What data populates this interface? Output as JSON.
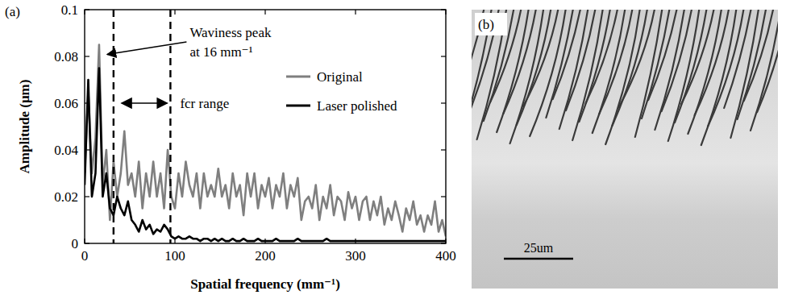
{
  "chart_data": {
    "type": "line",
    "panel": "(a)",
    "x_label": "Spatial frequency (mm⁻¹)",
    "y_label": "Amplitude (μm)",
    "xlim": [
      0,
      400
    ],
    "ylim": [
      0,
      0.1
    ],
    "xticks": [
      0,
      100,
      200,
      300,
      400
    ],
    "yticks": [
      0,
      0.02,
      0.04,
      0.06,
      0.08,
      0.1
    ],
    "grid": false,
    "legend": "upper right",
    "x": [
      0,
      4,
      8,
      12,
      16,
      20,
      24,
      28,
      32,
      36,
      40,
      44,
      48,
      52,
      56,
      60,
      64,
      68,
      72,
      76,
      80,
      84,
      88,
      92,
      96,
      100,
      104,
      108,
      112,
      116,
      120,
      124,
      128,
      132,
      136,
      140,
      144,
      148,
      152,
      156,
      160,
      164,
      168,
      172,
      176,
      180,
      184,
      188,
      192,
      196,
      200,
      204,
      208,
      212,
      216,
      220,
      224,
      228,
      232,
      236,
      240,
      244,
      248,
      252,
      256,
      260,
      264,
      268,
      272,
      276,
      280,
      284,
      288,
      292,
      296,
      300,
      304,
      308,
      312,
      316,
      320,
      324,
      328,
      332,
      336,
      340,
      344,
      348,
      352,
      356,
      360,
      364,
      368,
      372,
      376,
      380,
      384,
      388,
      392,
      396,
      400
    ],
    "series": [
      {
        "name": "Original",
        "color": "#7f7f7f",
        "values": [
          0.03,
          0.065,
          0.03,
          0.045,
          0.085,
          0.025,
          0.04,
          0.01,
          0.035,
          0.02,
          0.03,
          0.048,
          0.025,
          0.03,
          0.02,
          0.035,
          0.015,
          0.03,
          0.02,
          0.035,
          0.02,
          0.03,
          0.015,
          0.04,
          0.02,
          0.015,
          0.03,
          0.02,
          0.035,
          0.025,
          0.02,
          0.03,
          0.015,
          0.03,
          0.02,
          0.025,
          0.02,
          0.032,
          0.02,
          0.025,
          0.015,
          0.03,
          0.02,
          0.025,
          0.012,
          0.03,
          0.02,
          0.03,
          0.015,
          0.025,
          0.02,
          0.028,
          0.015,
          0.025,
          0.02,
          0.03,
          0.015,
          0.025,
          0.02,
          0.028,
          0.01,
          0.018,
          0.02,
          0.015,
          0.025,
          0.01,
          0.02,
          0.015,
          0.025,
          0.012,
          0.02,
          0.018,
          0.01,
          0.022,
          0.015,
          0.02,
          0.01,
          0.018,
          0.02,
          0.01,
          0.018,
          0.012,
          0.02,
          0.008,
          0.015,
          0.01,
          0.018,
          0.012,
          0.005,
          0.015,
          0.01,
          0.018,
          0.008,
          0.012,
          0.005,
          0.012,
          0.008,
          0.018,
          0.005,
          0.01,
          0.003
        ]
      },
      {
        "name": "Laser polished",
        "color": "#000000",
        "values": [
          0.025,
          0.07,
          0.02,
          0.03,
          0.075,
          0.02,
          0.03,
          0.015,
          0.012,
          0.02,
          0.015,
          0.012,
          0.018,
          0.01,
          0.008,
          0.005,
          0.01,
          0.006,
          0.008,
          0.004,
          0.006,
          0.005,
          0.008,
          0.006,
          0.003,
          0.002,
          0.003,
          0.002,
          0.002,
          0.003,
          0.002,
          0.002,
          0.001,
          0.002,
          0.002,
          0.001,
          0.002,
          0.001,
          0.002,
          0.001,
          0.001,
          0.002,
          0.001,
          0.001,
          0.002,
          0.001,
          0.001,
          0.001,
          0.002,
          0.001,
          0.001,
          0.001,
          0.001,
          0.002,
          0.001,
          0.001,
          0.001,
          0.001,
          0.001,
          0.002,
          0.001,
          0.001,
          0.001,
          0.001,
          0.001,
          0.001,
          0.001,
          0.002,
          0.001,
          0.001,
          0.001,
          0.001,
          0.001,
          0.001,
          0.001,
          0.001,
          0.001,
          0.001,
          0.001,
          0.001,
          0.001,
          0.001,
          0.001,
          0.001,
          0.001,
          0.001,
          0.001,
          0.001,
          0.001,
          0.001,
          0.001,
          0.001,
          0.001,
          0.001,
          0.001,
          0.001,
          0.001,
          0.001,
          0.001,
          0.001,
          0.001
        ]
      }
    ],
    "vlines": [
      32,
      95
    ],
    "annotations": [
      {
        "text": [
          "Waviness peak",
          "at 16 mm⁻¹"
        ],
        "x": 16,
        "y": 0.085
      },
      {
        "text": "fcr range",
        "x": [
          32,
          95
        ]
      }
    ]
  },
  "image_panel": {
    "label": "(b)",
    "scale_bar": "25um"
  }
}
